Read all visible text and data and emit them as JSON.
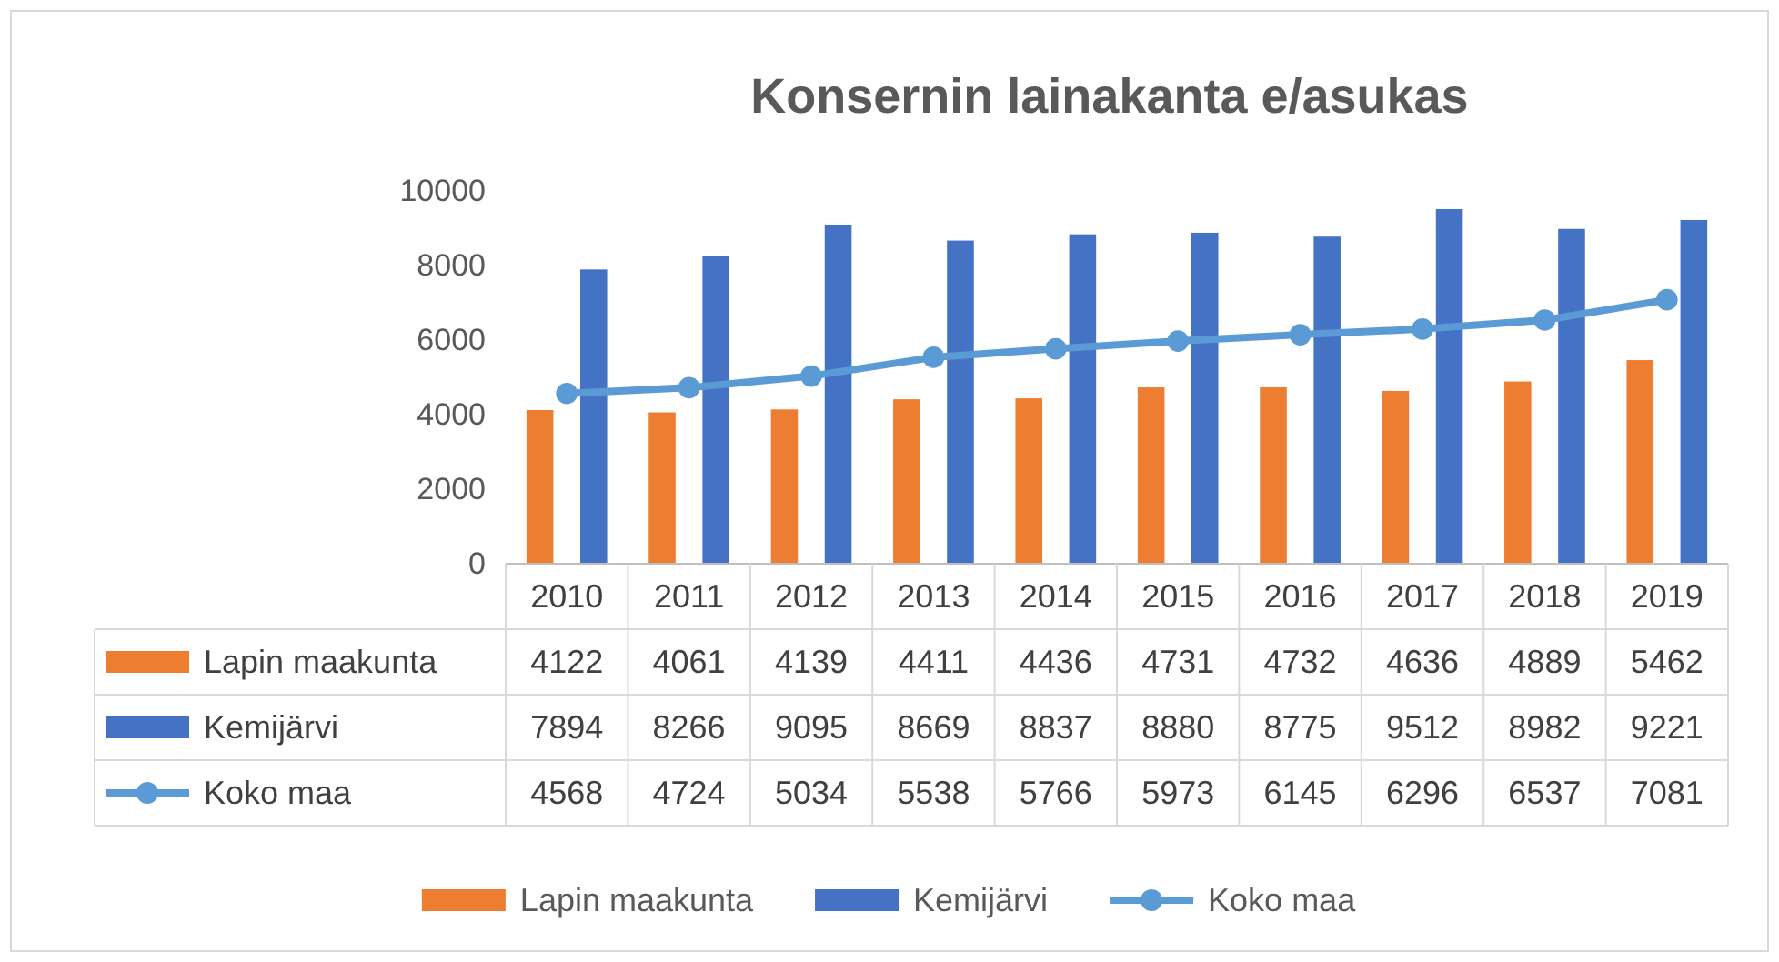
{
  "chart_data": {
    "type": "bar",
    "title": "Konsernin lainakanta e/asukas",
    "categories": [
      "2010",
      "2011",
      "2012",
      "2013",
      "2014",
      "2015",
      "2016",
      "2017",
      "2018",
      "2019"
    ],
    "series": [
      {
        "name": "Lapin maakunta",
        "color": "#ed7d31",
        "values": [
          4122,
          4061,
          4139,
          4411,
          4436,
          4731,
          4732,
          4636,
          4889,
          5462
        ]
      },
      {
        "name": "Kemijärvi",
        "color": "#4472c4",
        "values": [
          7894,
          8266,
          9095,
          8669,
          8837,
          8880,
          8775,
          9512,
          8982,
          9221
        ]
      },
      {
        "name": "Koko maa",
        "color": "#5b9bd5",
        "type": "line",
        "marker": "circle",
        "values": [
          4568,
          4724,
          5034,
          5538,
          5766,
          5973,
          6145,
          6296,
          6537,
          7081
        ]
      }
    ],
    "ylim": [
      0,
      10000
    ],
    "yticks": [
      0,
      2000,
      4000,
      6000,
      8000,
      10000
    ],
    "data_labels": true,
    "legend": "bottom"
  }
}
